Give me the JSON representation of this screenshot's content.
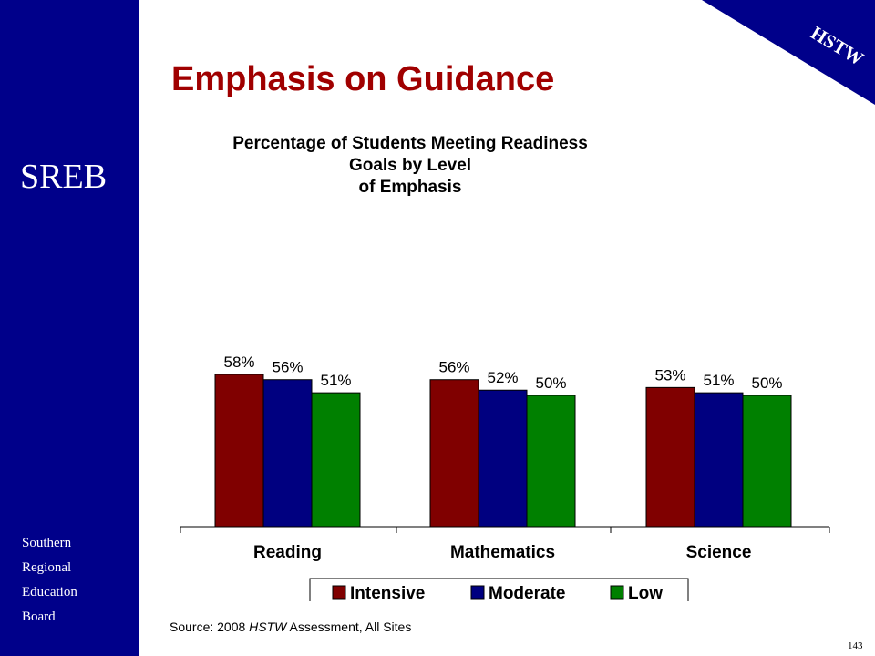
{
  "branding": {
    "logo_text": "SREB",
    "org_lines": [
      "Southern",
      "Regional",
      "Education",
      "Board"
    ],
    "corner_label": "HSTW",
    "sidebar_color": "#00008a"
  },
  "slide": {
    "title": "Emphasis on Guidance",
    "source_prefix": "Source: 2008 ",
    "source_italic": "HSTW",
    "source_suffix": " Assessment, All Sites",
    "page_number": "143"
  },
  "chart_data": {
    "type": "bar",
    "title": "Percentage of Students Meeting Readiness Goals by Level of Emphasis",
    "title_lines": [
      "Percentage of Students Meeting Readiness Goals by Level",
      "of Emphasis"
    ],
    "categories": [
      "Reading",
      "Mathematics",
      "Science"
    ],
    "series": [
      {
        "name": "Intensive",
        "color": "#800000",
        "values": [
          58,
          56,
          53
        ],
        "labels": [
          "58%",
          "56%",
          "53%"
        ]
      },
      {
        "name": "Moderate",
        "color": "#000080",
        "values": [
          56,
          52,
          51
        ],
        "labels": [
          "56%",
          "52%",
          "51%"
        ]
      },
      {
        "name": "Low",
        "color": "#008000",
        "values": [
          51,
          50,
          50
        ],
        "labels": [
          "51%",
          "50%",
          "50%"
        ]
      }
    ],
    "ylim": [
      0,
      75
    ],
    "xlabel": "",
    "ylabel": "",
    "grid": false,
    "legend_position": "bottom"
  }
}
